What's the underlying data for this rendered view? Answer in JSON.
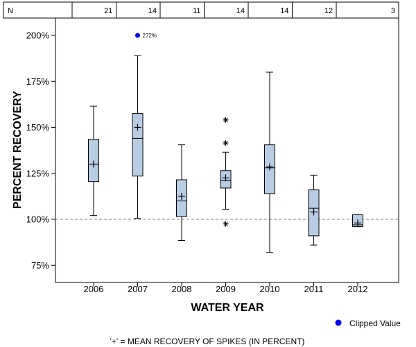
{
  "chart_data": {
    "type": "box",
    "xlabel": "WATER YEAR",
    "ylabel": "PERCENT RECOVERY",
    "ylim": [
      65,
      210
    ],
    "yticks": [
      75,
      100,
      125,
      150,
      175,
      200
    ],
    "ytick_labels": [
      "75%",
      "100%",
      "125%",
      "150%",
      "175%",
      "200%"
    ],
    "reference_line": 100,
    "n_header_label": "N",
    "categories": [
      "2006",
      "2007",
      "2008",
      "2009",
      "2010",
      "2011",
      "2012"
    ],
    "n_counts": [
      "21",
      "14",
      "11",
      "14",
      "14",
      "12",
      "3"
    ],
    "boxes": [
      {
        "year": "2006",
        "whisker_low": 102,
        "q1": 120.5,
        "median": 130,
        "q3": 143.5,
        "whisker_high": 161.5,
        "mean": 130,
        "outliers": []
      },
      {
        "year": "2007",
        "whisker_low": 100.5,
        "q1": 123.5,
        "median": 144,
        "q3": 157.5,
        "whisker_high": 189,
        "mean": 150,
        "outliers": []
      },
      {
        "year": "2008",
        "whisker_low": 88.5,
        "q1": 101.5,
        "median": 110,
        "q3": 121.5,
        "whisker_high": 140.5,
        "mean": 112.5,
        "outliers": []
      },
      {
        "year": "2009",
        "whisker_low": 105.5,
        "q1": 117,
        "median": 121,
        "q3": 126.5,
        "whisker_high": 136.5,
        "mean": 122.5,
        "outliers": [
          97.5,
          141.5,
          154
        ]
      },
      {
        "year": "2010",
        "whisker_low": 82,
        "q1": 114,
        "median": 128,
        "q3": 140.5,
        "whisker_high": 180,
        "mean": 128.5,
        "outliers": []
      },
      {
        "year": "2011",
        "whisker_low": 86,
        "q1": 91,
        "median": 106,
        "q3": 116,
        "whisker_high": 124,
        "mean": 104,
        "outliers": []
      },
      {
        "year": "2012",
        "whisker_low": 96,
        "q1": 96,
        "median": 97,
        "q3": 102.5,
        "whisker_high": 102.5,
        "mean": 98,
        "outliers": []
      }
    ],
    "clipped": [
      {
        "year": "2007",
        "value": 200,
        "label": "272%"
      }
    ],
    "colors": {
      "box_fill": "#b8cce4",
      "clipped": "#0000ee",
      "reference": "#808080"
    }
  },
  "legend": {
    "clipped_label": "Clipped Value"
  },
  "footnote": "'+' = MEAN RECOVERY OF SPIKES (IN PERCENT)"
}
